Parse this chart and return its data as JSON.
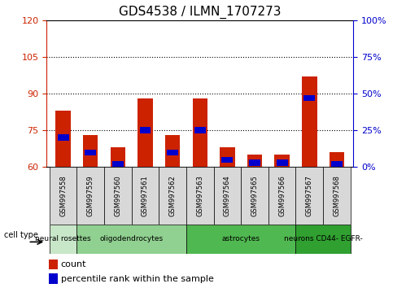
{
  "title": "GDS4538 / ILMN_1707273",
  "samples": [
    "GSM997558",
    "GSM997559",
    "GSM997560",
    "GSM997561",
    "GSM997562",
    "GSM997563",
    "GSM997564",
    "GSM997565",
    "GSM997566",
    "GSM997567",
    "GSM997568"
  ],
  "count_values": [
    83,
    73,
    68,
    88,
    73,
    88,
    68,
    65,
    65,
    97,
    66
  ],
  "percentile_values": [
    20,
    10,
    2,
    25,
    10,
    25,
    5,
    3,
    3,
    47,
    2
  ],
  "ymin": 60,
  "ymax": 120,
  "yticks_left": [
    60,
    75,
    90,
    105,
    120
  ],
  "yticks_right": [
    0,
    25,
    50,
    75,
    100
  ],
  "y2min": 0,
  "y2max": 100,
  "groups": [
    {
      "cols": [
        0,
        0
      ],
      "label": "neural rosettes",
      "color": "#c8e6c8"
    },
    {
      "cols": [
        1,
        4
      ],
      "label": "oligodendrocytes",
      "color": "#90d090"
    },
    {
      "cols": [
        5,
        8
      ],
      "label": "astrocytes",
      "color": "#50b850"
    },
    {
      "cols": [
        9,
        10
      ],
      "label": "neurons CD44- EGFR-",
      "color": "#30a030"
    }
  ],
  "bar_color": "#cc2200",
  "blue_color": "#0000cc",
  "bg_color": "#ffffff",
  "sample_box_color": "#d8d8d8",
  "tick_color_left": "#cc2200",
  "tick_color_right": "#0000cc",
  "legend_count_label": "count",
  "legend_pct_label": "percentile rank within the sample",
  "cell_type_label": "cell type",
  "bar_width": 0.55
}
